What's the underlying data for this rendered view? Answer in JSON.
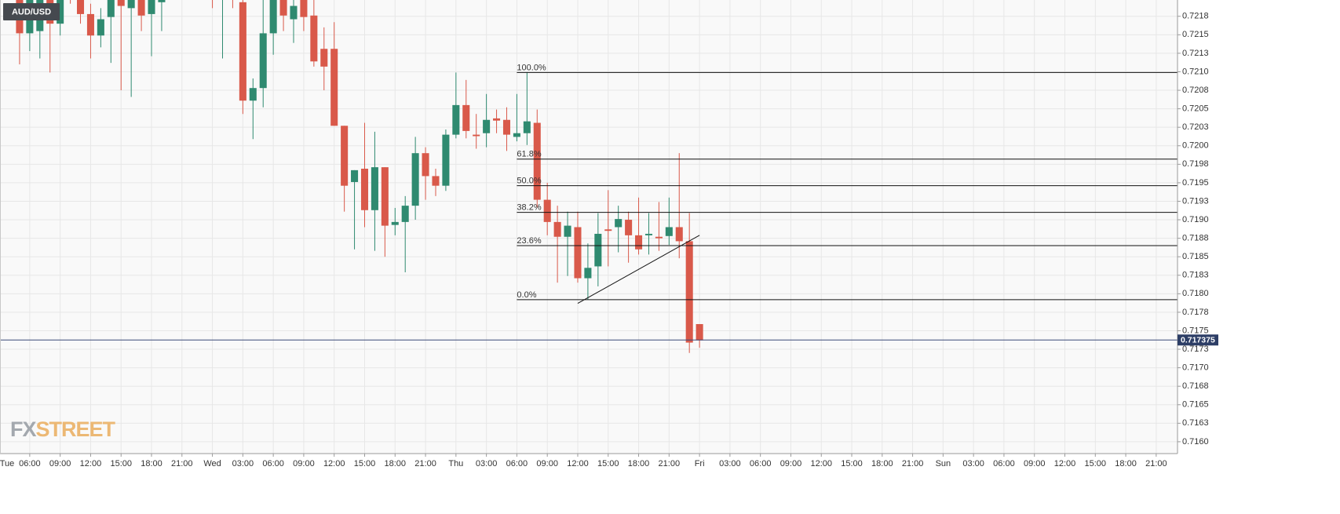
{
  "chart_data": {
    "type": "candlestick",
    "symbol": "AUD/USD",
    "watermark": [
      "FX",
      "STREET"
    ],
    "up_color": "#2f8a70",
    "down_color": "#d9594a",
    "grid": true,
    "xlim": [
      3.07,
      119.1
    ],
    "ylim": [
      0.71584,
      0.72197
    ],
    "xticks": [
      {
        "value": 0,
        "label": "Tue"
      },
      {
        "value": 6,
        "label": "06:00"
      },
      {
        "value": 9,
        "label": "09:00"
      },
      {
        "value": 12,
        "label": "12:00"
      },
      {
        "value": 15,
        "label": "15:00"
      },
      {
        "value": 18,
        "label": "18:00"
      },
      {
        "value": 21,
        "label": "21:00"
      },
      {
        "value": 24,
        "label": "Wed"
      },
      {
        "value": 27,
        "label": "03:00"
      },
      {
        "value": 30,
        "label": "06:00"
      },
      {
        "value": 33,
        "label": "09:00"
      },
      {
        "value": 36,
        "label": "12:00"
      },
      {
        "value": 39,
        "label": "15:00"
      },
      {
        "value": 42,
        "label": "18:00"
      },
      {
        "value": 45,
        "label": "21:00"
      },
      {
        "value": 48,
        "label": "Thu"
      },
      {
        "value": 51,
        "label": "03:00"
      },
      {
        "value": 54,
        "label": "06:00"
      },
      {
        "value": 57,
        "label": "09:00"
      },
      {
        "value": 60,
        "label": "12:00"
      },
      {
        "value": 63,
        "label": "15:00"
      },
      {
        "value": 66,
        "label": "18:00"
      },
      {
        "value": 69,
        "label": "21:00"
      },
      {
        "value": 72,
        "label": "Fri"
      },
      {
        "value": 75,
        "label": "03:00"
      },
      {
        "value": 78,
        "label": "06:00"
      },
      {
        "value": 81,
        "label": "09:00"
      },
      {
        "value": 84,
        "label": "12:00"
      },
      {
        "value": 87,
        "label": "15:00"
      },
      {
        "value": 90,
        "label": "18:00"
      },
      {
        "value": 93,
        "label": "21:00"
      },
      {
        "value": 96,
        "label": "Sun"
      },
      {
        "value": 99,
        "label": "03:00"
      },
      {
        "value": 102,
        "label": "06:00"
      },
      {
        "value": 105,
        "label": "09:00"
      },
      {
        "value": 108,
        "label": "12:00"
      },
      {
        "value": 111,
        "label": "15:00"
      },
      {
        "value": 114,
        "label": "18:00"
      },
      {
        "value": 117,
        "label": "21:00"
      }
    ],
    "yticks": [
      {
        "value": 0.716,
        "label": "0.7160"
      },
      {
        "value": 0.71625,
        "label": "0.7163"
      },
      0.7165,
      {
        "value": 0.71675,
        "label": "0.7168"
      },
      {
        "value": 0.717,
        "label": "0.7170"
      },
      {
        "value": 0.71725,
        "label": "0.7173"
      },
      0.7175,
      {
        "value": 0.71775,
        "label": "0.7178"
      },
      {
        "value": 0.718,
        "label": "0.7180"
      },
      {
        "value": 0.71825,
        "label": "0.7183"
      },
      0.7185,
      {
        "value": 0.71875,
        "label": "0.7188"
      },
      {
        "value": 0.719,
        "label": "0.7190"
      },
      {
        "value": 0.71925,
        "label": "0.7193"
      },
      0.7195,
      {
        "value": 0.71975,
        "label": "0.7198"
      },
      {
        "value": 0.72,
        "label": "0.7200"
      },
      {
        "value": 0.72025,
        "label": "0.7203"
      },
      0.7205,
      {
        "value": 0.72075,
        "label": "0.7208"
      },
      {
        "value": 0.721,
        "label": "0.7210"
      },
      {
        "value": 0.72125,
        "label": "0.7213"
      },
      0.7215,
      {
        "value": 0.72175,
        "label": "0.7218"
      }
    ],
    "x": [
      5,
      6,
      7,
      8,
      9,
      10,
      11,
      12,
      13,
      14,
      15,
      16,
      17,
      18,
      19,
      20,
      21,
      22,
      23,
      24,
      25,
      26,
      27,
      28,
      29,
      30,
      31,
      32,
      33,
      34,
      35,
      36,
      37,
      38,
      39,
      40,
      41,
      42,
      43,
      44,
      45,
      46,
      47,
      48,
      49,
      50,
      51,
      52,
      53,
      54,
      55,
      56,
      57,
      58,
      59,
      60,
      61,
      62,
      63,
      64,
      65,
      66,
      67,
      68,
      69,
      70,
      71,
      72
    ],
    "open": [
      0.72202,
      0.72152,
      0.72155,
      0.72205,
      0.72165,
      0.72218,
      0.72202,
      0.72178,
      0.72149,
      0.72174,
      0.72202,
      0.72186,
      0.72202,
      0.72178,
      0.72194,
      0.72218,
      0.72208,
      0.72229,
      0.72216,
      0.72234,
      0.7221,
      0.72229,
      0.72194,
      0.72061,
      0.72078,
      0.72152,
      0.72202,
      0.72171,
      0.72202,
      0.72176,
      0.72131,
      0.72131,
      0.72027,
      0.71951,
      0.71969,
      0.71913,
      0.71971,
      0.71893,
      0.71897,
      0.71919,
      0.7199,
      0.71959,
      0.71946,
      0.72015,
      0.72055,
      0.72015,
      0.72017,
      0.72037,
      0.72035,
      0.72012,
      0.72017,
      0.72031,
      0.71927,
      0.71897,
      0.71877,
      0.7189,
      0.71821,
      0.71837,
      0.71887,
      0.7189,
      0.719,
      0.71879,
      0.71879,
      0.71877,
      0.71878,
      0.7189,
      0.71871,
      0.71759
    ],
    "high": [
      0.72213,
      0.72213,
      0.72218,
      0.72213,
      0.7221,
      0.72227,
      0.7221,
      0.72192,
      0.72186,
      0.72213,
      0.72213,
      0.72213,
      0.7221,
      0.72213,
      0.72213,
      0.72224,
      0.72239,
      0.72239,
      0.72245,
      0.72242,
      0.72237,
      0.72237,
      0.72205,
      0.72091,
      0.72202,
      0.72213,
      0.7221,
      0.72202,
      0.7221,
      0.72202,
      0.7216,
      0.72167,
      0.72027,
      0.71967,
      0.72031,
      0.72019,
      0.71971,
      0.71916,
      0.71932,
      0.72012,
      0.71998,
      0.71969,
      0.72022,
      0.72099,
      0.72089,
      0.72043,
      0.7207,
      0.72049,
      0.72052,
      0.7207,
      0.72099,
      0.72049,
      0.7195,
      0.71919,
      0.71911,
      0.71911,
      0.71868,
      0.71909,
      0.7194,
      0.71919,
      0.71911,
      0.7193,
      0.71909,
      0.71924,
      0.7193,
      0.7199,
      0.71909,
      0.71759
    ],
    "low": [
      0.7211,
      0.72128,
      0.72118,
      0.72099,
      0.72149,
      0.72192,
      0.72165,
      0.72118,
      0.72133,
      0.72112,
      0.72075,
      0.72066,
      0.72155,
      0.72121,
      0.72155,
      0.72199,
      0.72202,
      0.72205,
      0.72208,
      0.72186,
      0.72118,
      0.72186,
      0.72043,
      0.72009,
      0.72052,
      0.72123,
      0.72155,
      0.72139,
      0.72155,
      0.72107,
      0.72075,
      0.72027,
      0.71911,
      0.7186,
      0.7189,
      0.71858,
      0.7185,
      0.71879,
      0.71829,
      0.719,
      0.71927,
      0.71932,
      0.71939,
      0.7201,
      0.7201,
      0.71996,
      0.71998,
      0.72017,
      0.71993,
      0.72006,
      0.72001,
      0.71916,
      0.71879,
      0.71815,
      0.71824,
      0.71815,
      0.71792,
      0.7181,
      0.71837,
      0.71856,
      0.71842,
      0.71853,
      0.71853,
      0.71858,
      0.71866,
      0.71848,
      0.7172,
      0.71727
    ],
    "close": [
      0.72152,
      0.72202,
      0.72208,
      0.72165,
      0.72202,
      0.72202,
      0.72178,
      0.72149,
      0.72171,
      0.72202,
      0.72189,
      0.72205,
      0.72176,
      0.72202,
      0.72205,
      0.72205,
      0.72229,
      0.72213,
      0.72234,
      0.7221,
      0.72229,
      0.72208,
      0.72061,
      0.72078,
      0.72152,
      0.72205,
      0.72176,
      0.72189,
      0.72174,
      0.72114,
      0.72107,
      0.72027,
      0.71946,
      0.71967,
      0.71913,
      0.71971,
      0.71892,
      0.71897,
      0.71919,
      0.7199,
      0.71959,
      0.71946,
      0.72015,
      0.72055,
      0.7202,
      0.72013,
      0.72035,
      0.72034,
      0.72015,
      0.72017,
      0.72033,
      0.71927,
      0.71897,
      0.71877,
      0.71892,
      0.71821,
      0.71835,
      0.71881,
      0.71885,
      0.71901,
      0.71879,
      0.7186,
      0.71881,
      0.71875,
      0.7189,
      0.71871,
      0.71734,
      0.71737
    ],
    "fibonacci": {
      "x": 54,
      "levels": [
        {
          "name": "100.0%",
          "price": 0.72099
        },
        {
          "name": "61.8%",
          "price": 0.71982
        },
        {
          "name": "50.0%",
          "price": 0.71946
        },
        {
          "name": "38.2%",
          "price": 0.7191
        },
        {
          "name": "23.6%",
          "price": 0.71865
        },
        {
          "name": "0.0%",
          "price": 0.71792
        }
      ]
    },
    "trendline": {
      "x": [
        60,
        72
      ],
      "y": [
        0.71787,
        0.71879
      ]
    },
    "last_price": 0.717375
  }
}
